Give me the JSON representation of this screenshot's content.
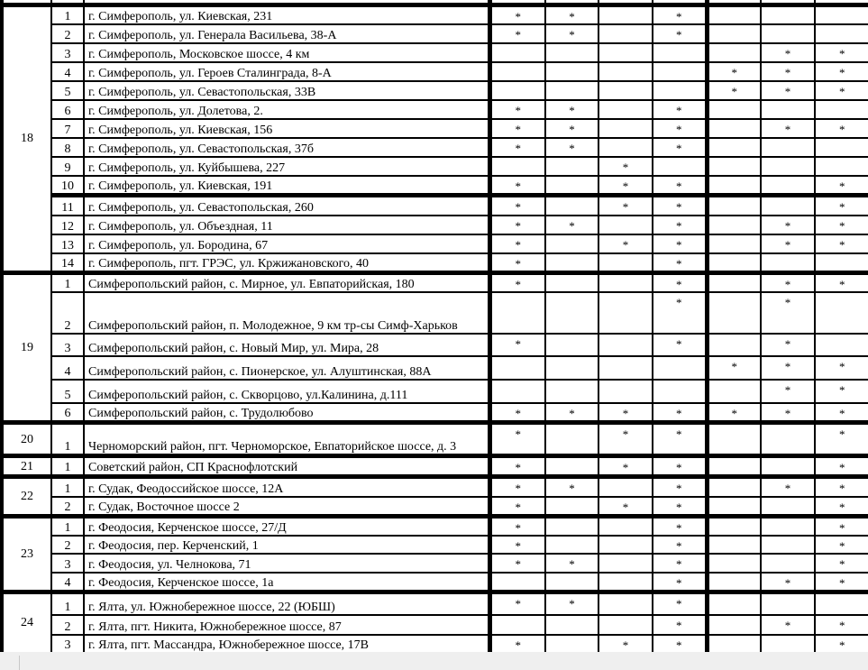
{
  "columns": 7,
  "groups": [
    {
      "id": "18",
      "rows": [
        {
          "num": "1",
          "address": "г. Симферополь, ул. Киевская, 231",
          "marks": [
            "*",
            "*",
            "",
            "*",
            "",
            "",
            ""
          ]
        },
        {
          "num": "2",
          "address": "г. Симферополь, ул. Генерала Васильева, 38-А",
          "marks": [
            "*",
            "*",
            "",
            "*",
            "",
            "",
            ""
          ]
        },
        {
          "num": "3",
          "address": "г. Симферополь, Московское шоссе, 4 км",
          "marks": [
            "",
            "",
            "",
            "",
            "",
            "*",
            "*"
          ]
        },
        {
          "num": "4",
          "address": "г. Симферополь, ул. Героев Сталинграда, 8-А",
          "marks": [
            "",
            "",
            "",
            "",
            "*",
            "*",
            "*"
          ]
        },
        {
          "num": "5",
          "address": "г. Симферополь, ул. Севастопольская, 33В",
          "marks": [
            "",
            "",
            "",
            "",
            "*",
            "*",
            "*"
          ]
        },
        {
          "num": "6",
          "address": "г. Симферополь, ул. Долетова, 2.",
          "marks": [
            "*",
            "*",
            "",
            "*",
            "",
            "",
            ""
          ]
        },
        {
          "num": "7",
          "address": "г. Симферополь, ул. Киевская, 156",
          "marks": [
            "*",
            "*",
            "",
            "*",
            "",
            "*",
            "*"
          ]
        },
        {
          "num": "8",
          "address": "г. Симферополь, ул. Севастопольская, 37б",
          "marks": [
            "*",
            "*",
            "",
            "*",
            "",
            "",
            ""
          ]
        },
        {
          "num": "9",
          "address": "г. Симферополь, ул. Куйбышева, 227",
          "marks": [
            "",
            "",
            "*",
            "",
            "",
            "",
            ""
          ]
        },
        {
          "num": "10",
          "address": "г. Симферополь, ул. Киевская, 191",
          "marks": [
            "*",
            "",
            "*",
            "*",
            "",
            "",
            "*"
          ]
        },
        {
          "num": "11",
          "address": "г. Симферополь, ул. Севастопольская, 260",
          "marks": [
            "*",
            "",
            "*",
            "*",
            "",
            "",
            "*"
          ]
        },
        {
          "num": "12",
          "address": "г. Симферополь, ул. Объездная, 11",
          "marks": [
            "*",
            "*",
            "",
            "*",
            "",
            "*",
            "*"
          ]
        },
        {
          "num": "13",
          "address": "г. Симферополь, ул. Бородина, 67",
          "marks": [
            "*",
            "",
            "*",
            "*",
            "",
            "*",
            "*"
          ]
        },
        {
          "num": "14",
          "address": "г. Симферополь, пгт. ГРЭС, ул. Кржижановского, 40",
          "marks": [
            "*",
            "",
            "",
            "*",
            "",
            "",
            ""
          ]
        }
      ]
    },
    {
      "id": "19",
      "rows": [
        {
          "num": "1",
          "address": "Симферопольский район, с. Мирное, ул. Евпаторийская, 180",
          "marks": [
            "*",
            "",
            "",
            "*",
            "",
            "*",
            "*"
          ]
        },
        {
          "num": "2",
          "address": "Симферопольский район, п. Молодежное, 9 км тр-сы Симф-Харьков",
          "marks": [
            "",
            "",
            "",
            "*",
            "",
            "*",
            ""
          ]
        },
        {
          "num": "3",
          "address": "Симферопольский район, с. Новый Мир, ул. Мира, 28",
          "marks": [
            "*",
            "",
            "",
            "*",
            "",
            "*",
            ""
          ]
        },
        {
          "num": "4",
          "address": "Симферопольский район, с. Пионерское, ул. Алуштинская, 88А",
          "marks": [
            "",
            "",
            "",
            "",
            "*",
            "*",
            "*"
          ]
        },
        {
          "num": "5",
          "address": "Симферопольский район, с. Скворцово, ул.Калинина, д.111",
          "marks": [
            "",
            "",
            "",
            "",
            "",
            "*",
            "*"
          ]
        },
        {
          "num": "6",
          "address": "Симферопольский район, с. Трудолюбово",
          "marks": [
            "*",
            "*",
            "*",
            "*",
            "*",
            "*",
            "*"
          ]
        }
      ]
    },
    {
      "id": "20",
      "rows": [
        {
          "num": "1",
          "address": "Черноморский район, пгт. Черноморское, Евпаторийское шоссе, д. 3",
          "marks": [
            "*",
            "",
            "*",
            "*",
            "",
            "",
            "*"
          ]
        }
      ]
    },
    {
      "id": "21",
      "rows": [
        {
          "num": "1",
          "address": "Советский район, СП Краснофлотский",
          "marks": [
            "*",
            "",
            "*",
            "*",
            "",
            "",
            "*"
          ]
        }
      ]
    },
    {
      "id": "22",
      "rows": [
        {
          "num": "1",
          "address": "г. Судак, Феодоссийское шоссе, 12А",
          "marks": [
            "*",
            "*",
            "",
            "*",
            "",
            "*",
            "*"
          ]
        },
        {
          "num": "2",
          "address": "г. Судак, Восточное шоссе 2",
          "marks": [
            "*",
            "",
            "*",
            "*",
            "",
            "",
            "*"
          ]
        }
      ]
    },
    {
      "id": "23",
      "rows": [
        {
          "num": "1",
          "address": "г. Феодосия, Керченское шоссе, 27/Д",
          "marks": [
            "*",
            "",
            "",
            "*",
            "",
            "",
            "*"
          ]
        },
        {
          "num": "2",
          "address": "г. Феодосия, пер. Керченский, 1",
          "marks": [
            "*",
            "",
            "",
            "*",
            "",
            "",
            "*"
          ]
        },
        {
          "num": "3",
          "address": "г. Феодосия, ул. Челнокова, 71",
          "marks": [
            "*",
            "*",
            "",
            "*",
            "",
            "",
            "*"
          ]
        },
        {
          "num": "4",
          "address": "г. Феодосия, Керченское шоссе, 1а",
          "marks": [
            "",
            "",
            "",
            "*",
            "",
            "*",
            "*"
          ]
        }
      ]
    },
    {
      "id": "24",
      "rows": [
        {
          "num": "1",
          "address": "г. Ялта, ул. Южнобережное шоссе, 22 (ЮБШ)",
          "marks": [
            "*",
            "*",
            "",
            "*",
            "",
            "",
            ""
          ]
        },
        {
          "num": "2",
          "address": "г. Ялта, пгт. Никита, Южнобережное шоссе, 87",
          "marks": [
            "",
            "",
            "",
            "*",
            "",
            "*",
            "*"
          ]
        },
        {
          "num": "3",
          "address": "г. Ялта, пгт. Массандра, Южнобережное шоссе, 17В",
          "marks": [
            "*",
            "",
            "*",
            "*",
            "",
            "",
            "*"
          ]
        }
      ]
    }
  ]
}
